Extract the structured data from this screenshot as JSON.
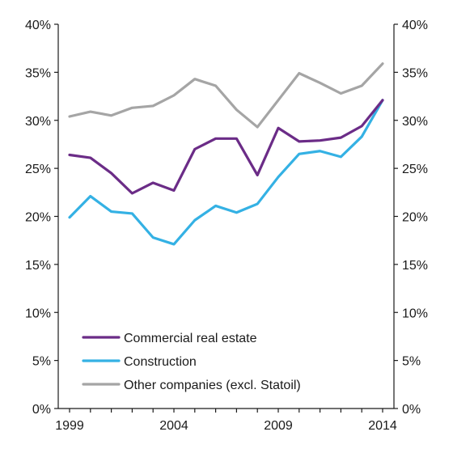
{
  "chart_data": {
    "type": "line",
    "title": "",
    "xlabel": "",
    "ylabel": "",
    "x": [
      1999,
      2000,
      2001,
      2002,
      2003,
      2004,
      2005,
      2006,
      2007,
      2008,
      2009,
      2010,
      2011,
      2012,
      2013,
      2014
    ],
    "x_ticks": [
      "1999",
      "2004",
      "2009",
      "2014"
    ],
    "ylim": [
      0,
      40
    ],
    "y_ticks_left": [
      "0%",
      "5%",
      "10%",
      "15%",
      "20%",
      "25%",
      "30%",
      "35%",
      "40%"
    ],
    "y_ticks_right": [
      "0%",
      "5%",
      "10%",
      "15%",
      "20%",
      "25%",
      "30%",
      "35%",
      "40%"
    ],
    "grid": false,
    "legend_position": "bottom-left",
    "series": [
      {
        "name": "Commercial real estate",
        "color": "#6b2c87",
        "values": [
          26.4,
          26.1,
          24.5,
          22.4,
          23.5,
          22.7,
          27.0,
          28.1,
          28.1,
          24.3,
          29.2,
          27.8,
          27.9,
          28.2,
          29.4,
          32.1
        ]
      },
      {
        "name": "Construction",
        "color": "#34b1e4",
        "values": [
          19.9,
          22.1,
          20.5,
          20.3,
          17.8,
          17.1,
          19.6,
          21.1,
          20.4,
          21.3,
          24.1,
          26.5,
          26.8,
          26.2,
          28.3,
          32.1
        ]
      },
      {
        "name": "Other companies (excl. Statoil)",
        "color": "#a5a5a5",
        "values": [
          30.4,
          30.9,
          30.5,
          31.3,
          31.5,
          32.6,
          34.3,
          33.6,
          31.1,
          29.3,
          32.1,
          34.9,
          33.9,
          32.8,
          33.6,
          35.9
        ]
      }
    ]
  }
}
